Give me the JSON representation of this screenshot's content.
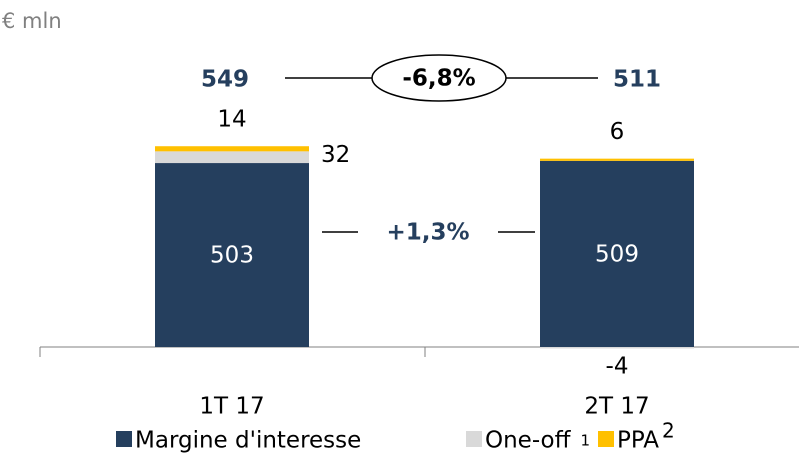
{
  "chart_data": {
    "type": "stacked_bar",
    "unit_label": "€ mln",
    "categories": [
      "1T 17",
      "2T 17"
    ],
    "series": [
      {
        "name": "Margine d'interesse",
        "color": "#253f5e",
        "values": [
          503,
          509
        ]
      },
      {
        "name": "One-off",
        "note": "1",
        "color": "#d9d9d9",
        "values": [
          32,
          -4
        ]
      },
      {
        "name": "PPA",
        "note": "2",
        "color": "#ffc000",
        "values": [
          14,
          6
        ]
      }
    ],
    "totals": [
      549,
      511
    ],
    "total_change": "-6,8%",
    "base_change": "+1,3%",
    "ylim": [
      0,
      700
    ]
  }
}
